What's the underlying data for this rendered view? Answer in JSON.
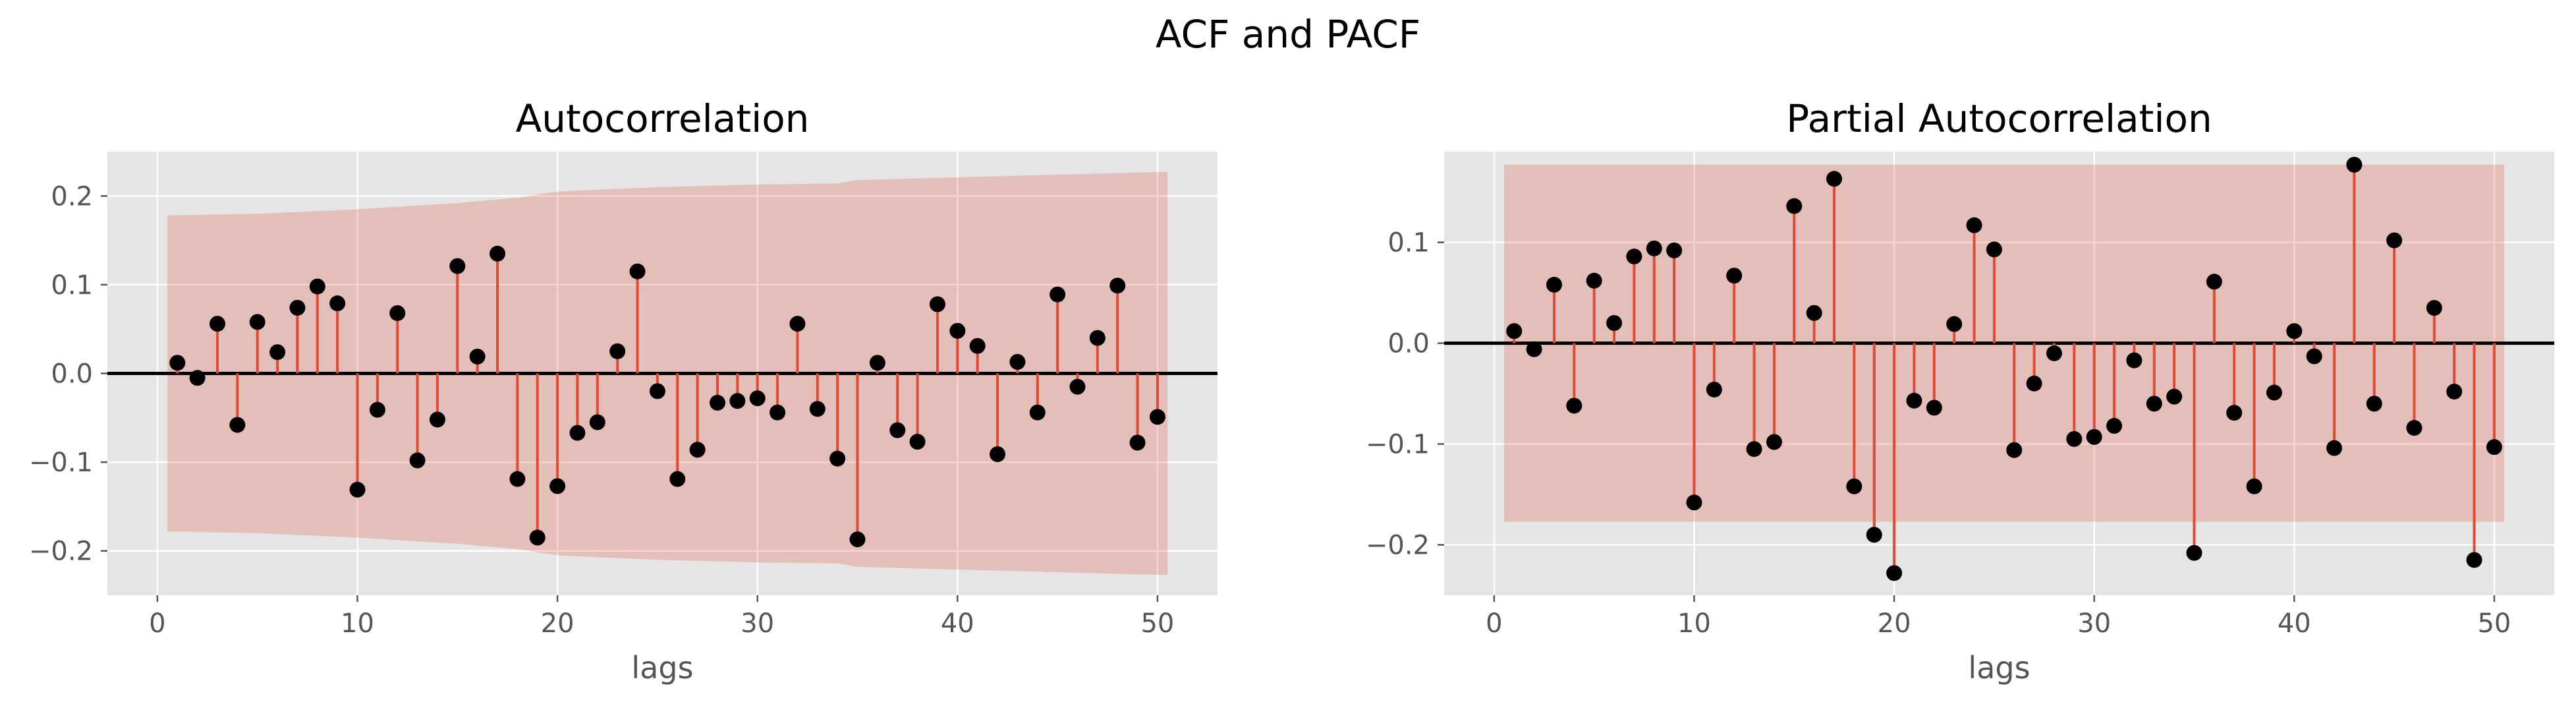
{
  "figure": {
    "title": "ACF and PACF"
  },
  "chart_data": [
    {
      "type": "stem",
      "title": "Autocorrelation",
      "xlabel": "lags",
      "ylabel": "",
      "xlim": [
        -2.5,
        53
      ],
      "ylim": [
        -0.25,
        0.25
      ],
      "xticks": [
        0,
        10,
        20,
        30,
        40,
        50
      ],
      "xtick_labels": [
        "0",
        "10",
        "20",
        "30",
        "40",
        "50"
      ],
      "yticks": [
        -0.2,
        -0.1,
        0.0,
        0.1,
        0.2
      ],
      "ytick_labels": [
        "−0.2",
        "−0.1",
        "0.0",
        "0.1",
        "0.2"
      ],
      "grid": true,
      "colors": {
        "background": "#e5e5e5",
        "stem": "#e24a33",
        "marker": "#000000",
        "band": "#e24a33",
        "zero_line": "#000000"
      },
      "lags": [
        1,
        2,
        3,
        4,
        5,
        6,
        7,
        8,
        9,
        10,
        11,
        12,
        13,
        14,
        15,
        16,
        17,
        18,
        19,
        20,
        21,
        22,
        23,
        24,
        25,
        26,
        27,
        28,
        29,
        30,
        31,
        32,
        33,
        34,
        35,
        36,
        37,
        38,
        39,
        40,
        41,
        42,
        43,
        44,
        45,
        46,
        47,
        48,
        49,
        50
      ],
      "values": [
        0.012,
        -0.005,
        0.056,
        -0.058,
        0.058,
        0.024,
        0.074,
        0.098,
        0.079,
        -0.131,
        -0.041,
        0.068,
        -0.098,
        -0.052,
        0.121,
        0.019,
        0.135,
        -0.119,
        -0.185,
        -0.127,
        -0.067,
        -0.055,
        0.025,
        0.115,
        -0.02,
        -0.119,
        -0.086,
        -0.033,
        -0.031,
        -0.028,
        -0.044,
        0.056,
        -0.04,
        -0.096,
        -0.187,
        0.012,
        -0.064,
        -0.077,
        0.078,
        0.048,
        0.031,
        -0.091,
        0.013,
        -0.044,
        0.089,
        -0.015,
        0.04,
        0.099,
        -0.078,
        -0.049
      ],
      "confidence_band": {
        "x": [
          0.5,
          5,
          10,
          15,
          18,
          20,
          25,
          30,
          34,
          35,
          40,
          45,
          50,
          50.5
        ],
        "upper": [
          0.178,
          0.18,
          0.185,
          0.192,
          0.198,
          0.205,
          0.21,
          0.213,
          0.214,
          0.218,
          0.221,
          0.224,
          0.227,
          0.227
        ]
      }
    },
    {
      "type": "stem",
      "title": "Partial Autocorrelation",
      "xlabel": "lags",
      "ylabel": "",
      "xlim": [
        -2.5,
        53
      ],
      "ylim": [
        -0.25,
        0.19
      ],
      "xticks": [
        0,
        10,
        20,
        30,
        40,
        50
      ],
      "xtick_labels": [
        "0",
        "10",
        "20",
        "30",
        "40",
        "50"
      ],
      "yticks": [
        -0.2,
        -0.1,
        0.0,
        0.1
      ],
      "ytick_labels": [
        "−0.2",
        "−0.1",
        "0.0",
        "0.1"
      ],
      "grid": true,
      "colors": {
        "background": "#e5e5e5",
        "stem": "#e24a33",
        "marker": "#000000",
        "band": "#e24a33",
        "zero_line": "#000000"
      },
      "lags": [
        1,
        2,
        3,
        4,
        5,
        6,
        7,
        8,
        9,
        10,
        11,
        12,
        13,
        14,
        15,
        16,
        17,
        18,
        19,
        20,
        21,
        22,
        23,
        24,
        25,
        26,
        27,
        28,
        29,
        30,
        31,
        32,
        33,
        34,
        35,
        36,
        37,
        38,
        39,
        40,
        41,
        42,
        43,
        44,
        45,
        46,
        47,
        48,
        49,
        50
      ],
      "values": [
        0.012,
        -0.006,
        0.058,
        -0.062,
        0.062,
        0.02,
        0.086,
        0.094,
        0.092,
        -0.158,
        -0.046,
        0.067,
        -0.105,
        -0.098,
        0.136,
        0.03,
        0.163,
        -0.142,
        -0.19,
        -0.228,
        -0.057,
        -0.064,
        0.019,
        0.117,
        0.093,
        -0.106,
        -0.04,
        -0.01,
        -0.095,
        -0.093,
        -0.082,
        -0.017,
        -0.06,
        -0.053,
        -0.208,
        0.061,
        -0.069,
        -0.142,
        -0.049,
        0.012,
        -0.013,
        -0.104,
        0.177,
        -0.06,
        0.102,
        -0.084,
        0.035,
        -0.048,
        -0.215,
        -0.103
      ],
      "confidence_band": {
        "x": [
          0.5,
          50.5
        ],
        "upper": [
          0.177,
          0.177
        ]
      }
    }
  ]
}
